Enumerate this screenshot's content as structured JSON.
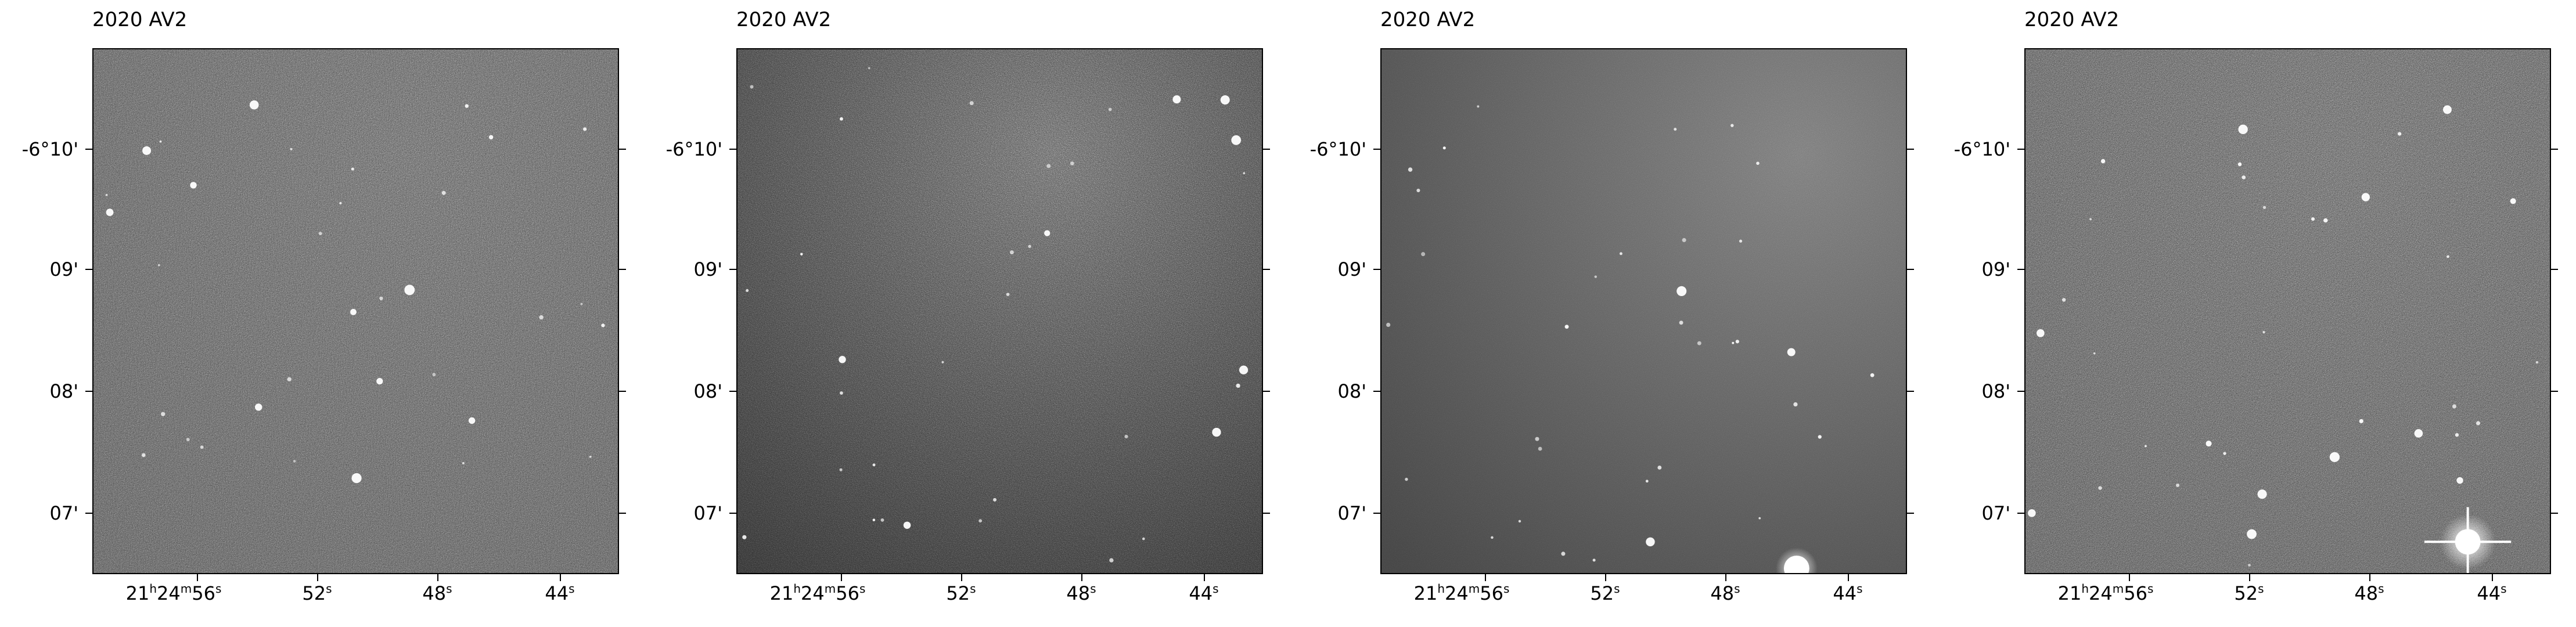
{
  "panels": [
    {
      "title": "2020 AV2",
      "variant": "sparse"
    },
    {
      "title": "2020 AV2",
      "variant": "vignette"
    },
    {
      "title": "2020 AV2",
      "variant": "smooth"
    },
    {
      "title": "2020 AV2",
      "variant": "flare"
    }
  ],
  "axes": {
    "y_ticks": [
      "-6°10'",
      "09'",
      "08'",
      "07'"
    ],
    "x_ticks": [
      {
        "h": "21",
        "m": "24",
        "s": "56"
      },
      {
        "s": "52"
      },
      {
        "s": "48"
      },
      {
        "s": "44"
      }
    ],
    "units": {
      "h": "h",
      "m": "m",
      "s": "s"
    }
  },
  "colors": {
    "sky": "#555555",
    "star": "#ffffff",
    "frame": "#000000"
  }
}
